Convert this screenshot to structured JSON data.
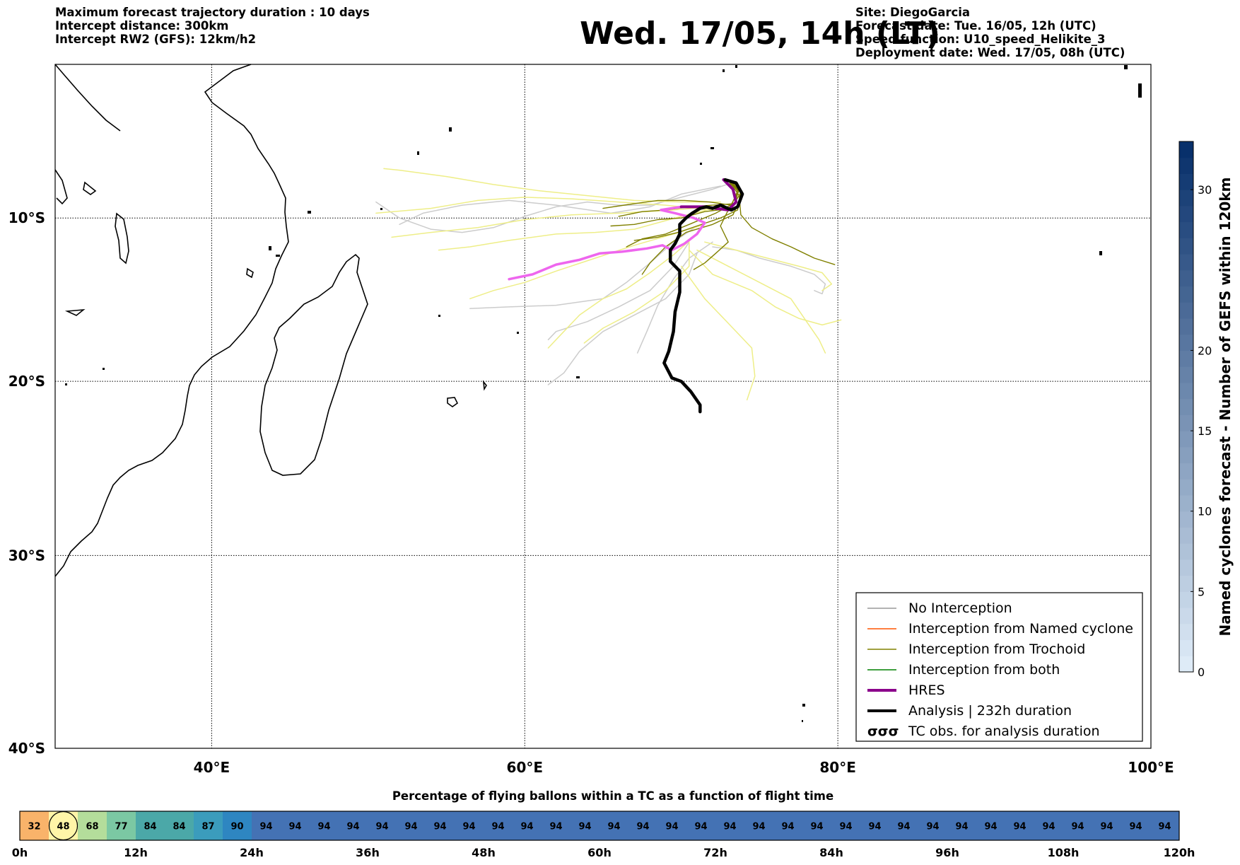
{
  "header_left": [
    "Maximum forecast trajectory duration : 10 days",
    "Intercept distance: 300km",
    "Intercept RW2 (GFS):  12km/h2"
  ],
  "title": "Wed. 17/05, 14h (LT)",
  "header_right": [
    "Site: DiegoGarcia",
    "Forecast date: Tue. 16/05, 12h (UTC)",
    "Speed function: U10_speed_Helikite_3",
    "Deployment date: Wed. 17/05, 08h (UTC)"
  ],
  "colors": {
    "no_interception": "#999999",
    "named_cyclone": "#ff5500",
    "trochoid": "#808000",
    "both": "#008000",
    "hres": "#8b008b",
    "analysis": "#000000",
    "gefs_light": "#eeee88",
    "gefs_grey": "#cccccc",
    "hres_pink": "#ee66ee"
  },
  "chart_data": [
    {
      "type": "map",
      "x_ticks": [
        "40°E",
        "60°E",
        "80°E",
        "100°E"
      ],
      "x_values": [
        40,
        60,
        80,
        100
      ],
      "y_ticks": [
        "10°S",
        "20°S",
        "30°S",
        "40°S"
      ],
      "y_values": [
        -10,
        -20,
        -30,
        -40
      ],
      "xlim": [
        30,
        100
      ],
      "ylim": [
        -40,
        -0.3
      ],
      "grid": true,
      "legend_position": "lower-right",
      "legend": [
        {
          "label": "No Interception",
          "style": "no_interception"
        },
        {
          "label": "Interception from Named cyclone",
          "style": "named_cyclone"
        },
        {
          "label": "Interception from Trochoid",
          "style": "trochoid"
        },
        {
          "label": "Interception from both",
          "style": "both"
        },
        {
          "label": "HRES",
          "style": "hres"
        },
        {
          "label": "Analysis | 232h duration",
          "style": "analysis"
        },
        {
          "label": "TC obs. for analysis duration",
          "style": "tc_symbol"
        }
      ],
      "analysis_track": [
        [
          72.8,
          -7.6
        ],
        [
          73.5,
          -7.8
        ],
        [
          73.9,
          -8.5
        ],
        [
          73.6,
          -9.3
        ],
        [
          73.2,
          -9.5
        ],
        [
          72.5,
          -9.2
        ],
        [
          72.0,
          -9.4
        ],
        [
          71.6,
          -9.3
        ],
        [
          71.2,
          -9.4
        ],
        [
          70.7,
          -9.7
        ],
        [
          70.3,
          -10.0
        ],
        [
          69.9,
          -10.4
        ],
        [
          69.9,
          -11.0
        ],
        [
          69.6,
          -11.6
        ],
        [
          69.3,
          -12.0
        ],
        [
          69.3,
          -12.7
        ],
        [
          69.9,
          -13.3
        ],
        [
          69.9,
          -14.6
        ],
        [
          69.6,
          -15.8
        ],
        [
          69.5,
          -17.0
        ],
        [
          69.2,
          -18.2
        ],
        [
          68.9,
          -18.9
        ],
        [
          69.4,
          -19.8
        ],
        [
          70.0,
          -20.0
        ],
        [
          70.6,
          -20.6
        ],
        [
          71.2,
          -21.4
        ],
        [
          71.2,
          -21.8
        ]
      ],
      "hres_track": [
        [
          59.0,
          -13.8
        ],
        [
          60.5,
          -13.5
        ],
        [
          62.0,
          -12.9
        ],
        [
          63.5,
          -12.6
        ],
        [
          64.8,
          -12.2
        ],
        [
          66.2,
          -12.1
        ],
        [
          67.8,
          -11.9
        ],
        [
          68.8,
          -11.7
        ],
        [
          69.4,
          -12.0
        ],
        [
          70.2,
          -11.6
        ],
        [
          71.0,
          -11.0
        ],
        [
          71.5,
          -10.3
        ],
        [
          70.8,
          -10.0
        ],
        [
          69.6,
          -9.7
        ],
        [
          68.7,
          -9.5
        ],
        [
          70.0,
          -9.3
        ],
        [
          71.5,
          -9.3
        ],
        [
          73.0,
          -9.5
        ],
        [
          73.5,
          -9.0
        ],
        [
          73.3,
          -8.2
        ],
        [
          72.7,
          -7.6
        ]
      ],
      "trochoid_tracks": [
        [
          [
            73.0,
            -7.6
          ],
          [
            73.7,
            -8.2
          ],
          [
            73.4,
            -9.1
          ],
          [
            72.0,
            -9.2
          ],
          [
            70.5,
            -9.3
          ],
          [
            69.0,
            -9.5
          ],
          [
            67.5,
            -9.6
          ],
          [
            66.0,
            -9.9
          ]
        ],
        [
          [
            73.0,
            -7.6
          ],
          [
            73.8,
            -8.4
          ],
          [
            73.2,
            -9.4
          ],
          [
            71.5,
            -9.6
          ],
          [
            70.0,
            -10.0
          ],
          [
            68.5,
            -10.1
          ],
          [
            67.0,
            -10.4
          ],
          [
            65.5,
            -10.5
          ]
        ],
        [
          [
            73.0,
            -7.6
          ],
          [
            73.6,
            -8.0
          ],
          [
            73.5,
            -9.0
          ],
          [
            72.2,
            -9.7
          ],
          [
            70.5,
            -10.4
          ],
          [
            69.0,
            -11.0
          ],
          [
            67.5,
            -11.3
          ],
          [
            66.5,
            -11.8
          ]
        ],
        [
          [
            73.0,
            -7.6
          ],
          [
            73.9,
            -8.5
          ],
          [
            73.3,
            -9.8
          ],
          [
            72.0,
            -10.4
          ],
          [
            70.3,
            -10.9
          ],
          [
            69.0,
            -11.8
          ],
          [
            68.0,
            -12.8
          ],
          [
            67.5,
            -13.5
          ]
        ],
        [
          [
            73.0,
            -7.6
          ],
          [
            73.7,
            -8.6
          ],
          [
            73.8,
            -9.8
          ],
          [
            74.5,
            -10.6
          ],
          [
            75.8,
            -11.3
          ],
          [
            77.0,
            -11.8
          ],
          [
            78.5,
            -12.5
          ],
          [
            79.8,
            -12.9
          ]
        ],
        [
          [
            73.0,
            -7.6
          ],
          [
            73.6,
            -8.3
          ],
          [
            73.2,
            -9.2
          ],
          [
            71.8,
            -9.0
          ],
          [
            70.2,
            -8.9
          ],
          [
            68.5,
            -8.9
          ],
          [
            67.0,
            -9.1
          ],
          [
            65.0,
            -9.4
          ]
        ],
        [
          [
            73.0,
            -7.6
          ],
          [
            73.8,
            -8.3
          ],
          [
            73.6,
            -9.5
          ],
          [
            72.5,
            -10.0
          ],
          [
            71.0,
            -10.5
          ],
          [
            69.8,
            -10.9
          ],
          [
            68.5,
            -11.2
          ],
          [
            67.0,
            -11.4
          ]
        ],
        [
          [
            73.0,
            -7.6
          ],
          [
            73.5,
            -8.6
          ],
          [
            73.0,
            -9.5
          ],
          [
            72.5,
            -10.5
          ],
          [
            73.0,
            -11.5
          ],
          [
            72.2,
            -12.2
          ],
          [
            71.5,
            -12.8
          ],
          [
            70.8,
            -13.2
          ]
        ]
      ],
      "grey_tracks": [
        [
          [
            73.5,
            -7.7
          ],
          [
            72.0,
            -8.2
          ],
          [
            70.0,
            -8.7
          ],
          [
            68.0,
            -9.2
          ],
          [
            66.0,
            -9.2
          ],
          [
            64.0,
            -9.0
          ],
          [
            62.0,
            -9.3
          ],
          [
            60.0,
            -9.9
          ],
          [
            58.0,
            -10.6
          ],
          [
            56.0,
            -10.9
          ],
          [
            54.0,
            -10.7
          ],
          [
            52.0,
            -10.0
          ],
          [
            50.5,
            -9.0
          ]
        ],
        [
          [
            72.5,
            -8.0
          ],
          [
            70.0,
            -8.5
          ],
          [
            68.0,
            -9.3
          ],
          [
            65.5,
            -9.7
          ],
          [
            62.0,
            -9.2
          ],
          [
            59.0,
            -8.9
          ],
          [
            56.0,
            -9.2
          ],
          [
            53.5,
            -9.7
          ],
          [
            52.0,
            -10.4
          ]
        ],
        [
          [
            71.0,
            -10.5
          ],
          [
            69.5,
            -11.5
          ],
          [
            68.0,
            -12.8
          ],
          [
            66.5,
            -14.0
          ],
          [
            65.0,
            -15.0
          ],
          [
            62.0,
            -15.4
          ],
          [
            59.0,
            -15.5
          ],
          [
            56.5,
            -15.6
          ]
        ],
        [
          [
            70.5,
            -11.5
          ],
          [
            69.5,
            -13.0
          ],
          [
            68.0,
            -14.5
          ],
          [
            66.0,
            -15.5
          ],
          [
            64.0,
            -16.4
          ],
          [
            62.0,
            -17.0
          ],
          [
            61.5,
            -17.5
          ]
        ],
        [
          [
            71.0,
            -12.2
          ],
          [
            70.5,
            -13.5
          ],
          [
            69.0,
            -15.0
          ],
          [
            67.0,
            -16.0
          ],
          [
            65.0,
            -17.0
          ],
          [
            63.5,
            -18.2
          ],
          [
            62.5,
            -19.5
          ],
          [
            61.5,
            -20.2
          ]
        ],
        [
          [
            72.0,
            -11.8
          ],
          [
            73.5,
            -12.0
          ],
          [
            75.0,
            -12.5
          ],
          [
            77.0,
            -13.0
          ],
          [
            78.5,
            -13.5
          ],
          [
            79.2,
            -14.1
          ],
          [
            79.0,
            -14.7
          ],
          [
            78.5,
            -14.5
          ]
        ],
        [
          [
            72.0,
            -11.5
          ],
          [
            70.5,
            -12.5
          ],
          [
            69.5,
            -13.8
          ],
          [
            68.5,
            -15.4
          ],
          [
            67.8,
            -17.0
          ],
          [
            67.2,
            -18.3
          ]
        ]
      ],
      "yellow_tracks": [
        [
          [
            72.0,
            -9.4
          ],
          [
            70.0,
            -9.9
          ],
          [
            67.0,
            -10.7
          ],
          [
            64.5,
            -10.9
          ],
          [
            62.0,
            -11.0
          ],
          [
            59.0,
            -11.4
          ],
          [
            56.5,
            -11.8
          ],
          [
            54.5,
            -12.0
          ]
        ],
        [
          [
            72.0,
            -9.3
          ],
          [
            69.5,
            -9.5
          ],
          [
            66.0,
            -9.7
          ],
          [
            63.0,
            -9.8
          ],
          [
            60.0,
            -10.1
          ],
          [
            57.0,
            -10.6
          ],
          [
            54.0,
            -10.9
          ],
          [
            51.5,
            -11.2
          ]
        ],
        [
          [
            72.5,
            -9.0
          ],
          [
            70.0,
            -9.0
          ],
          [
            67.0,
            -8.9
          ],
          [
            64.0,
            -8.6
          ],
          [
            61.0,
            -8.3
          ],
          [
            58.0,
            -7.9
          ],
          [
            55.0,
            -7.4
          ],
          [
            52.0,
            -7.0
          ],
          [
            51.0,
            -6.9
          ]
        ],
        [
          [
            72.0,
            -9.5
          ],
          [
            69.0,
            -9.2
          ],
          [
            66.0,
            -9.0
          ],
          [
            63.0,
            -8.8
          ],
          [
            60.0,
            -8.7
          ],
          [
            57.0,
            -8.9
          ],
          [
            54.0,
            -9.4
          ],
          [
            50.5,
            -9.7
          ]
        ],
        [
          [
            71.5,
            -10.4
          ],
          [
            69.5,
            -11.0
          ],
          [
            67.0,
            -11.7
          ],
          [
            64.5,
            -12.5
          ],
          [
            62.0,
            -13.3
          ],
          [
            60.0,
            -14.0
          ],
          [
            58.0,
            -14.5
          ],
          [
            56.5,
            -15.0
          ]
        ],
        [
          [
            71.0,
            -11.0
          ],
          [
            69.5,
            -12.3
          ],
          [
            68.0,
            -13.4
          ],
          [
            66.5,
            -14.4
          ],
          [
            65.0,
            -15.0
          ],
          [
            63.5,
            -16.0
          ],
          [
            62.5,
            -17.0
          ],
          [
            61.5,
            -18.0
          ]
        ],
        [
          [
            70.5,
            -11.5
          ],
          [
            70.5,
            -13.0
          ],
          [
            69.0,
            -14.5
          ],
          [
            67.0,
            -15.8
          ],
          [
            65.0,
            -16.8
          ],
          [
            63.8,
            -17.7
          ]
        ],
        [
          [
            71.5,
            -11.5
          ],
          [
            73.5,
            -12.0
          ],
          [
            75.5,
            -12.5
          ],
          [
            77.5,
            -13.0
          ],
          [
            79.0,
            -13.4
          ],
          [
            79.6,
            -14.1
          ],
          [
            79.0,
            -14.5
          ]
        ],
        [
          [
            71.0,
            -12.0
          ],
          [
            73.0,
            -13.0
          ],
          [
            75.0,
            -14.0
          ],
          [
            77.0,
            -15.0
          ],
          [
            78.0,
            -16.4
          ],
          [
            78.8,
            -17.5
          ],
          [
            79.2,
            -18.3
          ]
        ],
        [
          [
            70.5,
            -12.0
          ],
          [
            72.0,
            -13.5
          ],
          [
            74.5,
            -14.5
          ],
          [
            76.0,
            -15.5
          ],
          [
            77.5,
            -16.2
          ],
          [
            79.0,
            -16.6
          ],
          [
            80.2,
            -16.3
          ]
        ],
        [
          [
            70.0,
            -13.0
          ],
          [
            71.5,
            -15.0
          ],
          [
            73.0,
            -16.5
          ],
          [
            74.5,
            -18.0
          ],
          [
            74.7,
            -19.7
          ],
          [
            74.2,
            -21.1
          ]
        ]
      ]
    },
    {
      "type": "table",
      "title": "Percentage of flying ballons within a TC as a function of flight time",
      "values": [
        32,
        48,
        68,
        77,
        84,
        84,
        87,
        90,
        94,
        94,
        94,
        94,
        94,
        94,
        94,
        94,
        94,
        94,
        94,
        94,
        94,
        94,
        94,
        94,
        94,
        94,
        94,
        94,
        94,
        94,
        94,
        94,
        94,
        94,
        94,
        94,
        94,
        94,
        94,
        94
      ],
      "colors": [
        "#f9b36a",
        "#fff5a8",
        "#b4dd9b",
        "#7bc8a3",
        "#4ba8a8",
        "#4ba8a8",
        "#3b9cbc",
        "#2e86c1",
        "#4472b4"
      ],
      "highlight_index": 1,
      "x_ticks": [
        "0h",
        "12h",
        "24h",
        "36h",
        "48h",
        "60h",
        "72h",
        "84h",
        "96h",
        "108h",
        "120h"
      ],
      "xlim": [
        0,
        120
      ]
    },
    {
      "type": "colorbar",
      "label": "Named cyclones forecast - Number of GEFS within 120km",
      "range": [
        0,
        33
      ],
      "ticks": [
        "0",
        "5",
        "10",
        "15",
        "20",
        "30"
      ],
      "tick_values": [
        0,
        5,
        10,
        15,
        20,
        30
      ]
    }
  ]
}
